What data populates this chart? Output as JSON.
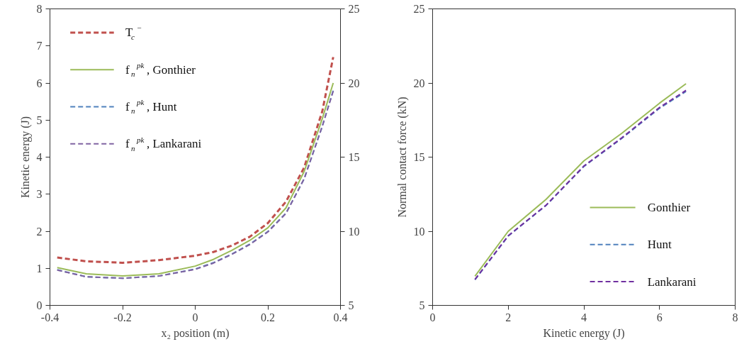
{
  "chart_data": [
    {
      "type": "line",
      "xlabel": "x₂ position (m)",
      "ylabel": "Kinetic energy (J)",
      "xlim": [
        -0.4,
        0.4
      ],
      "xticks": [
        -0.4,
        -0.2,
        0,
        0.2,
        0.4
      ],
      "ylim": [
        0,
        8
      ],
      "yticks": [
        0,
        1,
        2,
        3,
        4,
        5,
        6,
        7,
        8
      ],
      "y2lim": [
        5,
        25
      ],
      "y2ticks": [
        5,
        10,
        15,
        20,
        25
      ],
      "legend": "top left",
      "grid": false,
      "marker": "none",
      "x": [
        -0.38,
        -0.3,
        -0.2,
        -0.1,
        0,
        0.05,
        0.1,
        0.15,
        0.2,
        0.25,
        0.3,
        0.35,
        0.38
      ],
      "series": [
        {
          "name": "T$_{c}$$^{−}$",
          "color": "#c0504d",
          "line_style": "dashed",
          "values": [
            1.29,
            1.19,
            1.15,
            1.22,
            1.34,
            1.44,
            1.61,
            1.85,
            2.22,
            2.8,
            3.72,
            5.24,
            6.7
          ]
        },
        {
          "name": "f$_{n}$$^{pk}$, Gonthier",
          "color": "#9bbb59",
          "line_style": "solid",
          "axis": "y2",
          "values": [
            7.55,
            7.13,
            6.98,
            7.13,
            7.65,
            8.1,
            8.7,
            9.38,
            10.23,
            11.58,
            14.03,
            17.6,
            20.0
          ]
        },
        {
          "name": "f$_{n}$$^{pk}$, Hunt",
          "color": "#4f81bd",
          "line_style": "dashed",
          "axis": "y2",
          "values": [
            7.4,
            6.93,
            6.83,
            6.98,
            7.45,
            7.88,
            8.45,
            9.13,
            9.98,
            11.23,
            13.53,
            17.08,
            19.5
          ]
        },
        {
          "name": "f$_{n}$$^{pk}$, Lankarani",
          "color": "#8064a2",
          "line_style": "dashed",
          "axis": "y2",
          "values": [
            7.38,
            6.93,
            6.83,
            6.98,
            7.43,
            7.85,
            8.43,
            9.1,
            9.95,
            11.2,
            13.55,
            17.1,
            19.45
          ]
        }
      ]
    },
    {
      "type": "line",
      "xlabel": "Kinetic energy (J)",
      "ylabel": "Normal contact force (kN)",
      "xlim": [
        0,
        8
      ],
      "xticks": [
        0,
        2,
        4,
        6,
        8
      ],
      "ylim": [
        5,
        25
      ],
      "yticks": [
        5,
        10,
        15,
        20,
        25
      ],
      "legend": "bottom right",
      "grid": false,
      "marker": "none",
      "x": [
        1.12,
        2,
        3,
        4,
        5,
        6,
        6.7
      ],
      "series": [
        {
          "name": "Gonthier",
          "color": "#9bbb59",
          "line_style": "solid",
          "values": [
            6.97,
            10.0,
            12.15,
            14.75,
            16.6,
            18.64,
            19.95
          ]
        },
        {
          "name": "Hunt",
          "color": "#4f81bd",
          "line_style": "dashed",
          "values": [
            6.73,
            9.68,
            11.74,
            14.37,
            16.26,
            18.3,
            19.43
          ]
        },
        {
          "name": "Lankarani",
          "color": "#7030a0",
          "line_style": "dashed",
          "values": [
            6.75,
            9.7,
            11.76,
            14.4,
            16.3,
            18.35,
            19.5
          ]
        }
      ]
    }
  ]
}
